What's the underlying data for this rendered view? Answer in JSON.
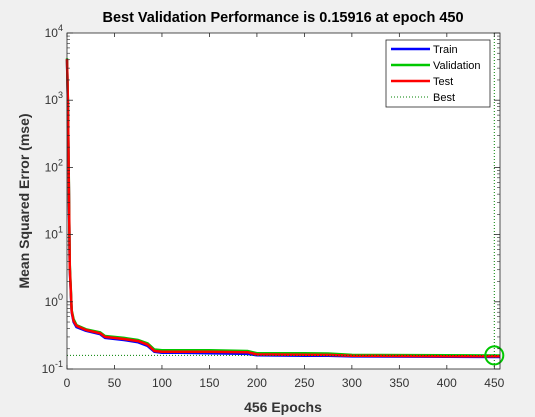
{
  "chart_data": {
    "type": "line",
    "title": "Best Validation Performance is 0.15916 at epoch 450",
    "xlabel": "456 Epochs",
    "ylabel": "Mean Squared Error  (mse)",
    "xlim": [
      0,
      456
    ],
    "ylim_log10": [
      -1,
      4
    ],
    "yscale": "log",
    "x_ticks": [
      "0",
      "50",
      "100",
      "150",
      "200",
      "250",
      "300",
      "350",
      "400",
      "450"
    ],
    "y_ticks": [
      {
        "base": "10",
        "exp": "-1"
      },
      {
        "base": "10",
        "exp": "0"
      },
      {
        "base": "10",
        "exp": "1"
      },
      {
        "base": "10",
        "exp": "2"
      },
      {
        "base": "10",
        "exp": "3"
      },
      {
        "base": "10",
        "exp": "4"
      }
    ],
    "grid": false,
    "legend_position": "top-right",
    "best": {
      "epoch": 450,
      "value": 0.15916
    },
    "series": [
      {
        "name": "Train",
        "color": "#0000ff",
        "x": [
          0,
          1,
          2,
          3,
          5,
          7,
          10,
          20,
          35,
          40,
          60,
          75,
          85,
          92,
          100,
          120,
          150,
          190,
          200,
          250,
          275,
          300,
          400,
          456
        ],
        "y": [
          4000,
          900,
          40,
          3,
          0.7,
          0.5,
          0.42,
          0.37,
          0.33,
          0.29,
          0.27,
          0.25,
          0.22,
          0.18,
          0.175,
          0.175,
          0.172,
          0.168,
          0.16,
          0.158,
          0.157,
          0.154,
          0.152,
          0.151
        ]
      },
      {
        "name": "Validation",
        "color": "#00c800",
        "x": [
          0,
          1,
          2,
          3,
          5,
          7,
          10,
          20,
          35,
          40,
          60,
          75,
          85,
          92,
          100,
          120,
          150,
          190,
          200,
          250,
          275,
          300,
          400,
          456
        ],
        "y": [
          4200,
          1000,
          50,
          3.5,
          0.75,
          0.55,
          0.45,
          0.39,
          0.35,
          0.31,
          0.29,
          0.27,
          0.24,
          0.195,
          0.19,
          0.19,
          0.19,
          0.185,
          0.172,
          0.172,
          0.17,
          0.162,
          0.16,
          0.159
        ]
      },
      {
        "name": "Test",
        "color": "#ff0000",
        "x": [
          0,
          1,
          2,
          3,
          5,
          7,
          10,
          20,
          35,
          40,
          60,
          75,
          85,
          92,
          100,
          120,
          150,
          190,
          200,
          250,
          275,
          300,
          400,
          456
        ],
        "y": [
          4100,
          950,
          45,
          3.2,
          0.72,
          0.52,
          0.44,
          0.38,
          0.34,
          0.3,
          0.28,
          0.26,
          0.23,
          0.185,
          0.18,
          0.18,
          0.18,
          0.178,
          0.165,
          0.163,
          0.162,
          0.157,
          0.155,
          0.155
        ]
      },
      {
        "name": "Best",
        "color": "#008000",
        "style": "dotted"
      }
    ]
  }
}
